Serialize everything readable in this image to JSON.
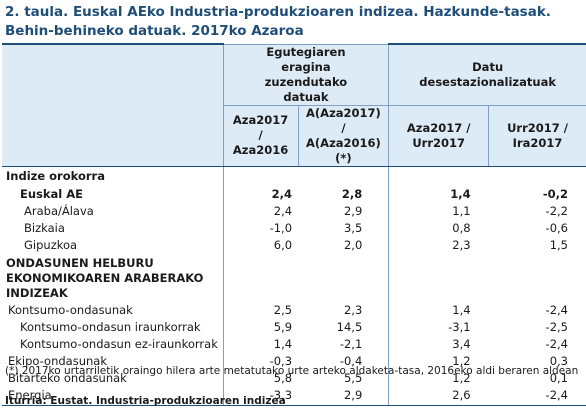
{
  "title": "2. taula. Euskal AEko Industria-produkzioaren indizea. Hazkunde-tasak. Behin-behineko datuak. 2017ko Azaroa",
  "header": {
    "group1": "Egutegiaren eragina zuzendutako datuak",
    "group2": "Datu desestazionalizatuak",
    "columns": [
      "Aza2017 / Aza2016",
      "A(Aza2017) / A(Aza2016)(*)",
      "Aza2017 / Urr2017",
      "Urr2017 / Ira2017"
    ]
  },
  "sections": {
    "general": "Indize orokorra",
    "destination": "ONDASUNEN HELBURU EKONOMIKOAREN ARABERAKO INDIZEAK"
  },
  "rows": [
    {
      "label": "Euskal AE",
      "values": [
        "2,4",
        "2,8",
        "1,4",
        "-0,2"
      ]
    },
    {
      "label": "Araba/Álava",
      "values": [
        "2,4",
        "2,9",
        "1,1",
        "-2,2"
      ]
    },
    {
      "label": "Bizkaia",
      "values": [
        "-1,0",
        "3,5",
        "0,8",
        "-0,6"
      ]
    },
    {
      "label": "Gipuzkoa",
      "values": [
        "6,0",
        "2,0",
        "2,3",
        "1,5"
      ]
    },
    {
      "label": "Kontsumo-ondasunak",
      "values": [
        "2,5",
        "2,3",
        "1,4",
        "-2,4"
      ]
    },
    {
      "label": "Kontsumo-ondasun iraunkorrak",
      "values": [
        "5,9",
        "14,5",
        "-3,1",
        "-2,5"
      ]
    },
    {
      "label": "Kontsumo-ondasun ez-iraunkorrak",
      "values": [
        "1,4",
        "-2,1",
        "3,4",
        "-2,4"
      ]
    },
    {
      "label": "Ekipo-ondasunak",
      "values": [
        "-0,3",
        "-0,4",
        "1,2",
        "0,3"
      ]
    },
    {
      "label": "Bitarteko ondasunak",
      "values": [
        "5,8",
        "5,5",
        "1,2",
        "0,1"
      ]
    },
    {
      "label": "Energia",
      "values": [
        "-3,3",
        "2,9",
        "2,6",
        "-2,4"
      ]
    }
  ],
  "note": "(*) 2017ko urtarriletik oraingo hilera arte metatutako urte arteko aldaketa-tasa, 2016eko aldi beraren aldean",
  "source": "Iturria: Eustat. Industria-produkzioaren indizea"
}
